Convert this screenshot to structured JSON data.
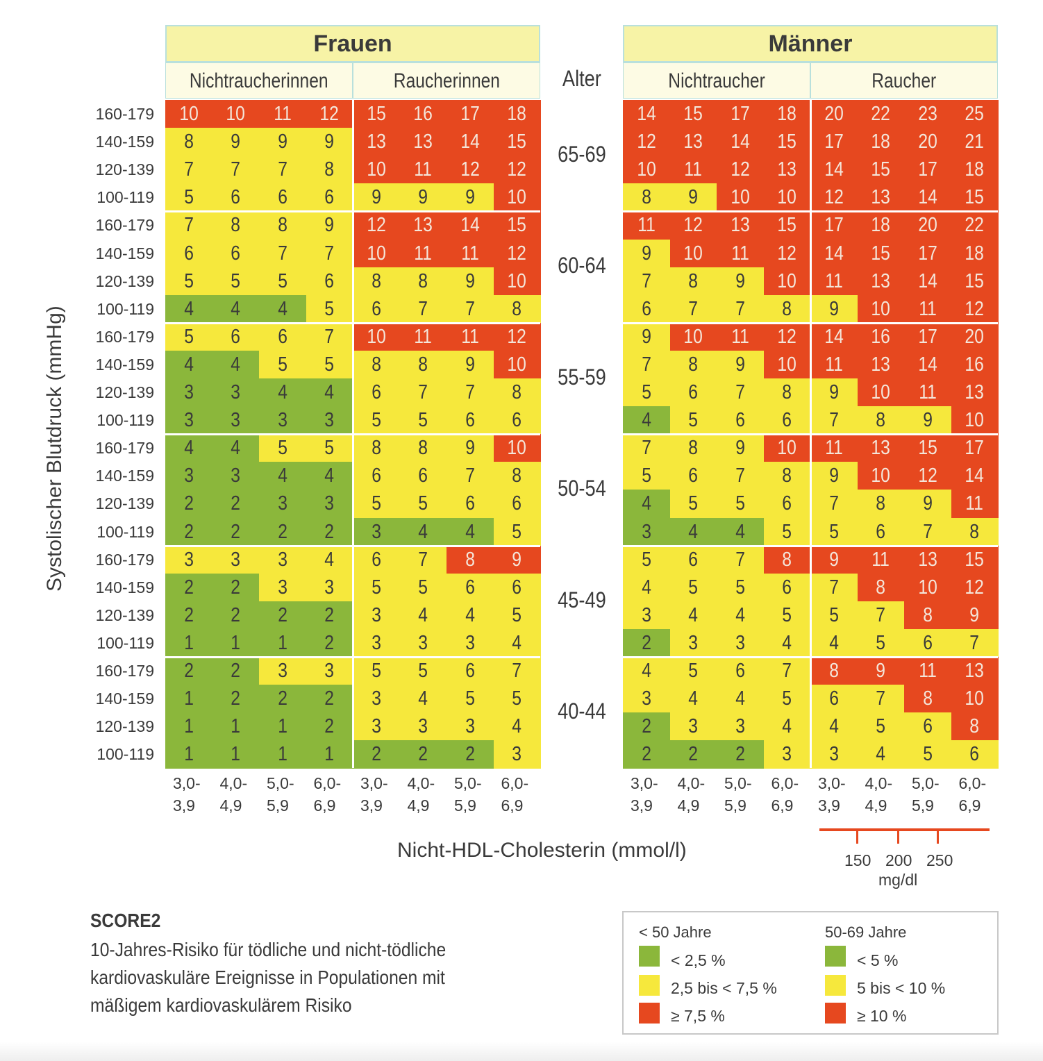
{
  "colors": {
    "green": "#8bb73b",
    "yellow": "#f6e83c",
    "red": "#e6481f",
    "text_dark": "#3a3a3a",
    "text_light": "#f4e6da",
    "header_bg": "#f7f3a6",
    "subheader_bg": "#fdfbe4"
  },
  "header": {
    "women": "Frauen",
    "men": "Männer",
    "women_nonsmoker": "Nichtraucherinnen",
    "women_smoker": "Raucherinnen",
    "men_nonsmoker": "Nichtraucher",
    "men_smoker": "Raucher",
    "age_label": "Alter"
  },
  "footer": {
    "score_title": "SCORE2",
    "score_desc_lines": [
      "10-Jahres-Risiko für tödliche und nicht-tödliche",
      "kardiovaskuläre Ereignisse in Populationen mit",
      "mäßigem kardiovaskulärem Risiko"
    ],
    "mgdl_ticks": [
      "150",
      "200",
      "250"
    ],
    "mgdl_unit": "mg/dl"
  },
  "legend": {
    "groups": [
      {
        "title": "< 50 Jahre",
        "items": [
          {
            "color": "green",
            "label": "< 2,5 %"
          },
          {
            "color": "yellow",
            "label": "2,5 bis < 7,5 %"
          },
          {
            "color": "red",
            "label": "≥ 7,5 %"
          }
        ]
      },
      {
        "title": "50-69 Jahre",
        "items": [
          {
            "color": "green",
            "label": "< 5 %"
          },
          {
            "color": "yellow",
            "label": "5 bis  < 10 %"
          },
          {
            "color": "red",
            "label": "≥  10 %"
          }
        ]
      }
    ]
  },
  "chart_data": {
    "type": "heatmap",
    "title": "SCORE2",
    "xlabel": "Nicht-HDL-Cholesterin (mmol/l)",
    "ylabel": "Systolischer Blutdruck (mmHg)",
    "x_ticks": [
      [
        "3,0-",
        "3,9"
      ],
      [
        "4,0-",
        "4,9"
      ],
      [
        "5,0-",
        "5,9"
      ],
      [
        "6,0-",
        "6,9"
      ]
    ],
    "bp_rows": [
      "160-179",
      "140-159",
      "120-139",
      "100-119"
    ],
    "age_groups": [
      "65-69",
      "60-64",
      "55-59",
      "50-54",
      "45-49",
      "40-44"
    ],
    "panels": [
      "women_nonsmoker",
      "women_smoker",
      "men_nonsmoker",
      "men_smoker"
    ],
    "values": {
      "65-69": {
        "women_nonsmoker": [
          [
            10,
            10,
            11,
            12
          ],
          [
            8,
            9,
            9,
            9
          ],
          [
            7,
            7,
            7,
            8
          ],
          [
            5,
            6,
            6,
            6
          ]
        ],
        "women_smoker": [
          [
            15,
            16,
            17,
            18
          ],
          [
            13,
            13,
            14,
            15
          ],
          [
            10,
            11,
            12,
            12
          ],
          [
            9,
            9,
            9,
            10
          ]
        ],
        "men_nonsmoker": [
          [
            14,
            15,
            17,
            18
          ],
          [
            12,
            13,
            14,
            15
          ],
          [
            10,
            11,
            12,
            13
          ],
          [
            8,
            9,
            10,
            10
          ]
        ],
        "men_smoker": [
          [
            20,
            22,
            23,
            25
          ],
          [
            17,
            18,
            20,
            21
          ],
          [
            14,
            15,
            17,
            18
          ],
          [
            12,
            13,
            14,
            15
          ]
        ]
      },
      "60-64": {
        "women_nonsmoker": [
          [
            7,
            8,
            8,
            9
          ],
          [
            6,
            6,
            7,
            7
          ],
          [
            5,
            5,
            5,
            6
          ],
          [
            4,
            4,
            4,
            5
          ]
        ],
        "women_smoker": [
          [
            12,
            13,
            14,
            15
          ],
          [
            10,
            11,
            11,
            12
          ],
          [
            8,
            8,
            9,
            10
          ],
          [
            6,
            7,
            7,
            8
          ]
        ],
        "men_nonsmoker": [
          [
            11,
            12,
            13,
            15
          ],
          [
            9,
            10,
            11,
            12
          ],
          [
            7,
            8,
            9,
            10
          ],
          [
            6,
            7,
            7,
            8
          ]
        ],
        "men_smoker": [
          [
            17,
            18,
            20,
            22
          ],
          [
            14,
            15,
            17,
            18
          ],
          [
            11,
            13,
            14,
            15
          ],
          [
            9,
            10,
            11,
            12
          ]
        ]
      },
      "55-59": {
        "women_nonsmoker": [
          [
            5,
            6,
            6,
            7
          ],
          [
            4,
            4,
            5,
            5
          ],
          [
            3,
            3,
            4,
            4
          ],
          [
            3,
            3,
            3,
            3
          ]
        ],
        "women_smoker": [
          [
            10,
            11,
            11,
            12
          ],
          [
            8,
            8,
            9,
            10
          ],
          [
            6,
            7,
            7,
            8
          ],
          [
            5,
            5,
            6,
            6
          ]
        ],
        "men_nonsmoker": [
          [
            9,
            10,
            11,
            12
          ],
          [
            7,
            8,
            9,
            10
          ],
          [
            5,
            6,
            7,
            8
          ],
          [
            4,
            5,
            6,
            6
          ]
        ],
        "men_smoker": [
          [
            14,
            16,
            17,
            20
          ],
          [
            11,
            13,
            14,
            16
          ],
          [
            9,
            10,
            11,
            13
          ],
          [
            7,
            8,
            9,
            10
          ]
        ]
      },
      "50-54": {
        "women_nonsmoker": [
          [
            4,
            4,
            5,
            5
          ],
          [
            3,
            3,
            4,
            4
          ],
          [
            2,
            2,
            3,
            3
          ],
          [
            2,
            2,
            2,
            2
          ]
        ],
        "women_smoker": [
          [
            8,
            8,
            9,
            10
          ],
          [
            6,
            6,
            7,
            8
          ],
          [
            5,
            5,
            6,
            6
          ],
          [
            3,
            4,
            4,
            5
          ]
        ],
        "men_nonsmoker": [
          [
            7,
            8,
            9,
            10
          ],
          [
            5,
            6,
            7,
            8
          ],
          [
            4,
            5,
            5,
            6
          ],
          [
            3,
            4,
            4,
            5
          ]
        ],
        "men_smoker": [
          [
            11,
            13,
            15,
            17
          ],
          [
            9,
            10,
            12,
            14
          ],
          [
            7,
            8,
            9,
            11
          ],
          [
            5,
            6,
            7,
            8
          ]
        ]
      },
      "45-49": {
        "women_nonsmoker": [
          [
            3,
            3,
            3,
            4
          ],
          [
            2,
            2,
            3,
            3
          ],
          [
            2,
            2,
            2,
            2
          ],
          [
            1,
            1,
            1,
            2
          ]
        ],
        "women_smoker": [
          [
            6,
            7,
            8,
            9
          ],
          [
            5,
            5,
            6,
            6
          ],
          [
            3,
            4,
            4,
            5
          ],
          [
            3,
            3,
            3,
            4
          ]
        ],
        "men_nonsmoker": [
          [
            5,
            6,
            7,
            8
          ],
          [
            4,
            5,
            5,
            6
          ],
          [
            3,
            4,
            4,
            5
          ],
          [
            2,
            3,
            3,
            4
          ]
        ],
        "men_smoker": [
          [
            9,
            11,
            13,
            15
          ],
          [
            7,
            8,
            10,
            12
          ],
          [
            5,
            7,
            8,
            9
          ],
          [
            4,
            5,
            6,
            7
          ]
        ]
      },
      "40-44": {
        "women_nonsmoker": [
          [
            2,
            2,
            3,
            3
          ],
          [
            1,
            2,
            2,
            2
          ],
          [
            1,
            1,
            1,
            2
          ],
          [
            1,
            1,
            1,
            1
          ]
        ],
        "women_smoker": [
          [
            5,
            5,
            6,
            7
          ],
          [
            3,
            4,
            5,
            5
          ],
          [
            3,
            3,
            3,
            4
          ],
          [
            2,
            2,
            2,
            3
          ]
        ],
        "men_nonsmoker": [
          [
            4,
            5,
            6,
            7
          ],
          [
            3,
            4,
            4,
            5
          ],
          [
            2,
            3,
            3,
            4
          ],
          [
            2,
            2,
            2,
            3
          ]
        ],
        "men_smoker": [
          [
            8,
            9,
            11,
            13
          ],
          [
            6,
            7,
            8,
            10
          ],
          [
            4,
            5,
            6,
            8
          ],
          [
            3,
            4,
            5,
            6
          ]
        ]
      }
    },
    "thresholds": {
      "under_50": {
        "green_below": 2.5,
        "red_from": 7.5
      },
      "50_to_69": {
        "green_below": 5,
        "red_from": 10
      }
    },
    "legend_position": "bottom-right"
  }
}
